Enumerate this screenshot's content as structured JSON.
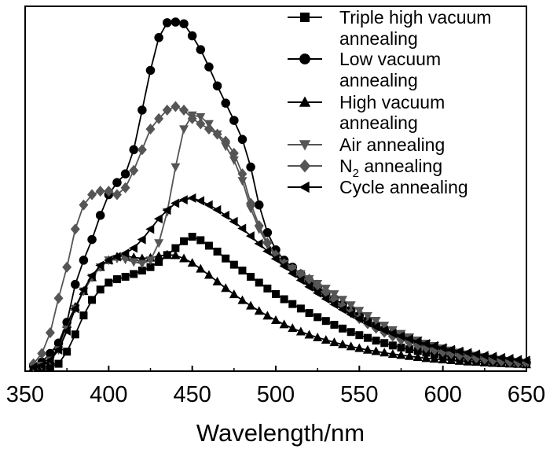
{
  "chart_data": {
    "type": "line",
    "xlabel": "Wavelength/nm",
    "ylabel": "",
    "xlim": [
      350,
      650
    ],
    "ylim": [
      0,
      1.0
    ],
    "xticks": [
      350,
      400,
      450,
      500,
      550,
      600,
      650
    ],
    "yticks_visible": false,
    "legend_position": "top-right",
    "series": [
      {
        "name": "Triple high vacuum annealing",
        "label_line1": "Triple high vacuum",
        "label_line2": "annealing",
        "marker": "square",
        "color": "#000000",
        "x": [
          355,
          360,
          365,
          370,
          375,
          380,
          385,
          390,
          395,
          400,
          405,
          410,
          415,
          420,
          425,
          430,
          435,
          440,
          445,
          450,
          455,
          460,
          465,
          470,
          475,
          480,
          485,
          490,
          495,
          500,
          505,
          510,
          515,
          520,
          525,
          530,
          535,
          540,
          545,
          550,
          555,
          560,
          565,
          570,
          575,
          580,
          585,
          590,
          595,
          600,
          605,
          610,
          615,
          620,
          625,
          630,
          635,
          640,
          645,
          650
        ],
        "y": [
          0.0,
          0.0,
          0.002,
          0.01,
          0.045,
          0.095,
          0.15,
          0.195,
          0.225,
          0.245,
          0.255,
          0.262,
          0.27,
          0.28,
          0.29,
          0.305,
          0.325,
          0.345,
          0.365,
          0.378,
          0.368,
          0.352,
          0.335,
          0.315,
          0.297,
          0.28,
          0.262,
          0.245,
          0.228,
          0.212,
          0.197,
          0.183,
          0.17,
          0.157,
          0.145,
          0.134,
          0.123,
          0.112,
          0.102,
          0.093,
          0.085,
          0.077,
          0.07,
          0.063,
          0.057,
          0.052,
          0.047,
          0.042,
          0.038,
          0.034,
          0.031,
          0.028,
          0.025,
          0.022,
          0.019,
          0.017,
          0.015,
          0.013,
          0.011,
          0.01
        ]
      },
      {
        "name": "Low vacuum annealing",
        "label_line1": "Low vacuum",
        "label_line2": "annealing",
        "marker": "circle",
        "color": "#000000",
        "x": [
          355,
          360,
          365,
          370,
          375,
          380,
          385,
          390,
          395,
          400,
          405,
          410,
          415,
          420,
          425,
          430,
          435,
          440,
          445,
          450,
          455,
          460,
          465,
          470,
          475,
          480,
          485,
          490,
          495,
          500,
          505,
          510,
          515,
          520,
          525,
          530,
          535,
          540,
          545,
          550,
          555,
          560,
          565,
          570,
          575,
          580,
          585,
          590,
          595,
          600,
          605,
          610,
          615,
          620,
          625,
          630,
          635,
          640,
          645,
          650
        ],
        "y": [
          0.005,
          0.015,
          0.04,
          0.07,
          0.13,
          0.24,
          0.31,
          0.37,
          0.44,
          0.5,
          0.535,
          0.56,
          0.63,
          0.745,
          0.86,
          0.955,
          0.998,
          1.0,
          0.995,
          0.96,
          0.92,
          0.87,
          0.815,
          0.765,
          0.715,
          0.66,
          0.58,
          0.47,
          0.39,
          0.34,
          0.31,
          0.29,
          0.27,
          0.25,
          0.232,
          0.215,
          0.198,
          0.182,
          0.166,
          0.15,
          0.136,
          0.122,
          0.11,
          0.099,
          0.089,
          0.08,
          0.072,
          0.064,
          0.057,
          0.051,
          0.046,
          0.041,
          0.036,
          0.032,
          0.028,
          0.024,
          0.021,
          0.018,
          0.015,
          0.013
        ]
      },
      {
        "name": "High vacuum annealing",
        "label_line1": "High vacuum",
        "label_line2": "annealing",
        "marker": "triangle-up",
        "color": "#000000",
        "x": [
          355,
          360,
          365,
          370,
          375,
          380,
          385,
          390,
          395,
          400,
          405,
          410,
          415,
          420,
          425,
          430,
          435,
          440,
          445,
          450,
          455,
          460,
          465,
          470,
          475,
          480,
          485,
          490,
          495,
          500,
          505,
          510,
          515,
          520,
          525,
          530,
          535,
          540,
          545,
          550,
          555,
          560,
          565,
          570,
          575,
          580,
          585,
          590,
          595,
          600,
          605,
          610,
          615,
          620,
          625,
          630,
          635,
          640,
          645,
          650
        ],
        "y": [
          0.0,
          0.005,
          0.02,
          0.06,
          0.125,
          0.175,
          0.22,
          0.26,
          0.29,
          0.31,
          0.32,
          0.322,
          0.318,
          0.315,
          0.317,
          0.322,
          0.326,
          0.324,
          0.315,
          0.302,
          0.285,
          0.267,
          0.248,
          0.229,
          0.211,
          0.194,
          0.178,
          0.163,
          0.149,
          0.136,
          0.124,
          0.113,
          0.103,
          0.094,
          0.086,
          0.079,
          0.072,
          0.066,
          0.06,
          0.055,
          0.05,
          0.046,
          0.042,
          0.038,
          0.035,
          0.032,
          0.029,
          0.026,
          0.024,
          0.022,
          0.02,
          0.018,
          0.016,
          0.015,
          0.013,
          0.012,
          0.011,
          0.01,
          0.009,
          0.008
        ]
      },
      {
        "name": "Air annealing",
        "label_line1": "Air annealing",
        "label_line2": "",
        "marker": "triangle-down",
        "color": "#555555",
        "x": [
          355,
          360,
          365,
          370,
          375,
          380,
          385,
          390,
          395,
          400,
          405,
          410,
          415,
          420,
          425,
          430,
          435,
          440,
          445,
          450,
          455,
          460,
          465,
          470,
          475,
          480,
          485,
          490,
          495,
          500,
          505,
          510,
          515,
          520,
          525,
          530,
          535,
          540,
          545,
          550,
          555,
          560,
          565,
          570,
          575,
          580,
          585,
          590,
          595,
          600,
          605,
          610,
          615,
          620,
          625,
          630,
          635,
          640,
          645,
          650
        ],
        "y": [
          0.0,
          0.005,
          0.02,
          0.05,
          0.11,
          0.17,
          0.22,
          0.26,
          0.29,
          0.31,
          0.315,
          0.312,
          0.305,
          0.3,
          0.31,
          0.36,
          0.45,
          0.58,
          0.69,
          0.73,
          0.725,
          0.705,
          0.675,
          0.64,
          0.6,
          0.54,
          0.46,
          0.4,
          0.355,
          0.32,
          0.3,
          0.285,
          0.27,
          0.256,
          0.242,
          0.228,
          0.212,
          0.196,
          0.18,
          0.164,
          0.149,
          0.135,
          0.121,
          0.108,
          0.097,
          0.087,
          0.078,
          0.069,
          0.062,
          0.055,
          0.049,
          0.043,
          0.038,
          0.034,
          0.03,
          0.026,
          0.022,
          0.019,
          0.016,
          0.013
        ]
      },
      {
        "name": "N2 annealing",
        "label_line1": "N",
        "label_sub": "2",
        "label_line1_rest": " annealing",
        "label_line2": "",
        "marker": "diamond",
        "color": "#555555",
        "x": [
          355,
          360,
          365,
          370,
          375,
          380,
          385,
          390,
          395,
          400,
          405,
          410,
          415,
          420,
          425,
          430,
          435,
          440,
          445,
          450,
          455,
          460,
          465,
          470,
          475,
          480,
          485,
          490,
          495,
          500,
          505,
          510,
          515,
          520,
          525,
          530,
          535,
          540,
          545,
          550,
          555,
          560,
          565,
          570,
          575,
          580,
          585,
          590,
          595,
          600,
          605,
          610,
          615,
          620,
          625,
          630,
          635,
          640,
          645,
          650
        ],
        "y": [
          0.01,
          0.04,
          0.1,
          0.2,
          0.29,
          0.4,
          0.47,
          0.5,
          0.51,
          0.51,
          0.5,
          0.52,
          0.57,
          0.63,
          0.69,
          0.72,
          0.745,
          0.755,
          0.745,
          0.72,
          0.705,
          0.69,
          0.675,
          0.655,
          0.62,
          0.56,
          0.475,
          0.41,
          0.36,
          0.325,
          0.3,
          0.285,
          0.27,
          0.255,
          0.238,
          0.218,
          0.197,
          0.177,
          0.158,
          0.141,
          0.126,
          0.113,
          0.101,
          0.09,
          0.08,
          0.072,
          0.064,
          0.057,
          0.051,
          0.045,
          0.04,
          0.035,
          0.031,
          0.027,
          0.024,
          0.021,
          0.018,
          0.016,
          0.014,
          0.012
        ]
      },
      {
        "name": "Cycle annealing",
        "label_line1": "Cycle annealing",
        "label_line2": "",
        "marker": "triangle-left",
        "color": "#000000",
        "x": [
          355,
          360,
          365,
          370,
          375,
          380,
          385,
          390,
          395,
          400,
          405,
          410,
          415,
          420,
          425,
          430,
          435,
          440,
          445,
          450,
          455,
          460,
          465,
          470,
          475,
          480,
          485,
          490,
          495,
          500,
          505,
          510,
          515,
          520,
          525,
          530,
          535,
          540,
          545,
          550,
          555,
          560,
          565,
          570,
          575,
          580,
          585,
          590,
          595,
          600,
          605,
          610,
          615,
          620,
          625,
          630,
          635,
          640,
          645,
          650
        ],
        "y": [
          0.0,
          0.005,
          0.02,
          0.05,
          0.105,
          0.17,
          0.225,
          0.265,
          0.295,
          0.31,
          0.32,
          0.33,
          0.345,
          0.37,
          0.4,
          0.43,
          0.455,
          0.475,
          0.485,
          0.49,
          0.482,
          0.47,
          0.456,
          0.44,
          0.422,
          0.402,
          0.38,
          0.358,
          0.336,
          0.314,
          0.293,
          0.272,
          0.252,
          0.233,
          0.215,
          0.198,
          0.182,
          0.167,
          0.153,
          0.14,
          0.128,
          0.117,
          0.107,
          0.098,
          0.09,
          0.082,
          0.075,
          0.068,
          0.062,
          0.056,
          0.051,
          0.046,
          0.042,
          0.038,
          0.034,
          0.031,
          0.028,
          0.025,
          0.022,
          0.02
        ]
      }
    ]
  }
}
